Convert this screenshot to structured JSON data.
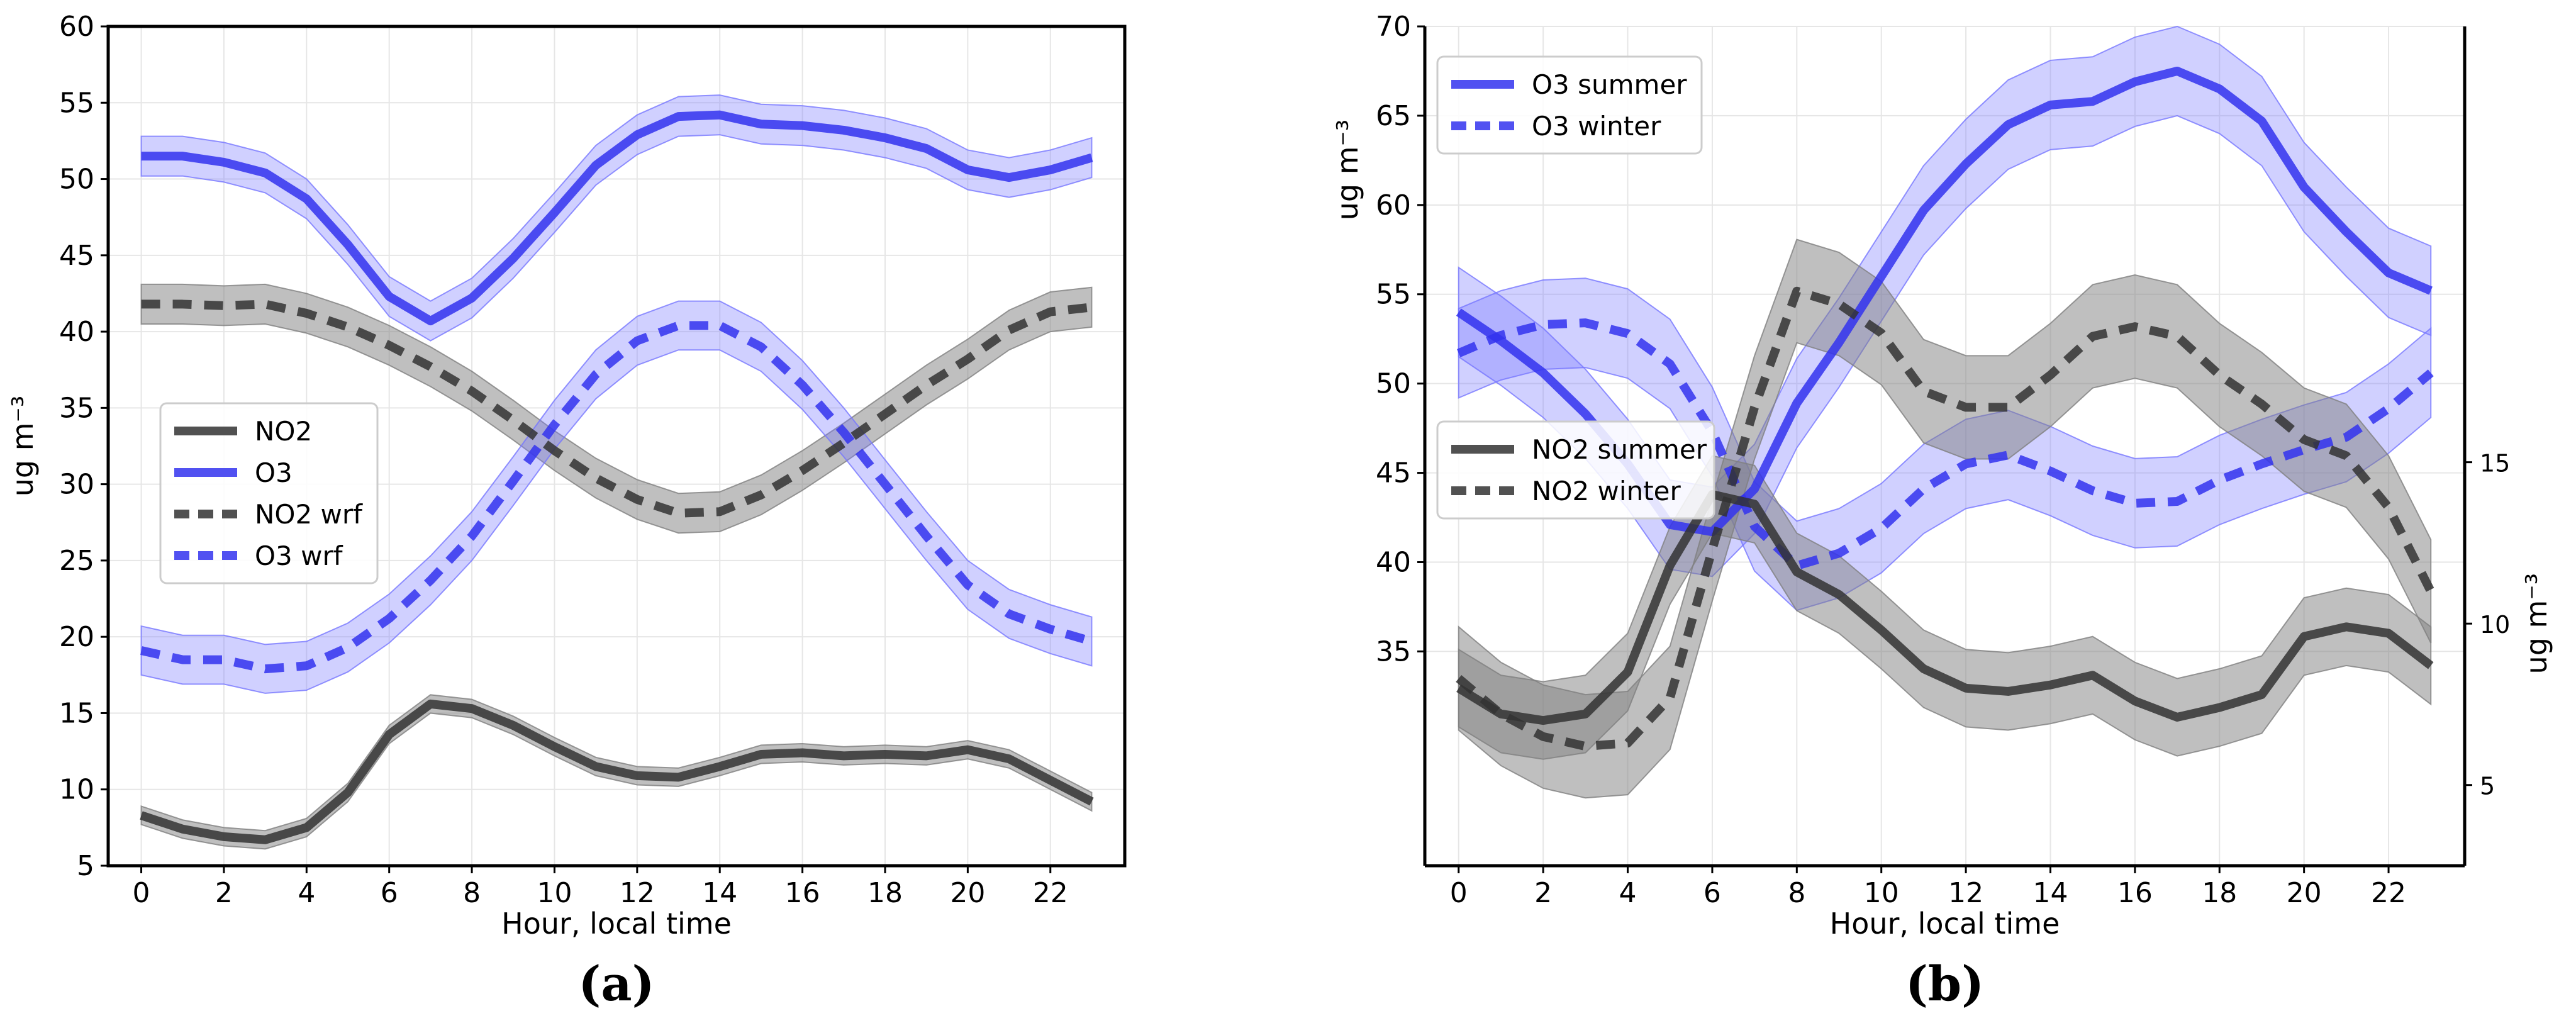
{
  "colors": {
    "no2": "#333333",
    "no2_band": "#808080",
    "o3": "#3333ee",
    "o3_band": "#7777ff",
    "grid": "#e6e6e6",
    "axis": "#000000"
  },
  "chart_data": [
    {
      "type": "line",
      "panel_label": "(a)",
      "xlabel": "Hour, local time",
      "ylabel": "ug m⁻³",
      "xlim": [
        -0.8,
        23.8
      ],
      "ylim": [
        5,
        60
      ],
      "xticks": [
        0,
        2,
        4,
        6,
        8,
        10,
        12,
        14,
        16,
        18,
        20,
        22
      ],
      "yticks": [
        5,
        10,
        15,
        20,
        25,
        30,
        35,
        40,
        45,
        50,
        55,
        60
      ],
      "grid": true,
      "legend_position": "center-left",
      "legend": [
        {
          "label": "NO2",
          "color": "no2",
          "dash": false
        },
        {
          "label": "O3",
          "color": "o3",
          "dash": false
        },
        {
          "label": "NO2 wrf",
          "color": "no2",
          "dash": true
        },
        {
          "label": "O3 wrf",
          "color": "o3",
          "dash": true
        }
      ],
      "series": [
        {
          "name": "NO2",
          "color": "no2",
          "dash": false,
          "band": 0.6,
          "values": [
            8.3,
            7.4,
            6.9,
            6.7,
            7.5,
            9.8,
            13.6,
            15.6,
            15.3,
            14.2,
            12.8,
            11.5,
            10.9,
            10.8,
            11.5,
            12.3,
            12.4,
            12.2,
            12.3,
            12.2,
            12.6,
            12.0,
            10.6,
            9.2
          ]
        },
        {
          "name": "O3",
          "color": "o3",
          "dash": false,
          "band": 1.3,
          "values": [
            51.5,
            51.5,
            51.1,
            50.4,
            48.7,
            45.7,
            42.3,
            40.7,
            42.2,
            44.8,
            47.8,
            50.9,
            52.9,
            54.1,
            54.2,
            53.6,
            53.5,
            53.2,
            52.7,
            52.0,
            50.6,
            50.1,
            50.6,
            51.4
          ]
        },
        {
          "name": "NO2 wrf",
          "color": "no2",
          "dash": true,
          "band": 1.3,
          "values": [
            41.8,
            41.8,
            41.7,
            41.8,
            41.2,
            40.3,
            39.1,
            37.7,
            36.1,
            34.2,
            32.2,
            30.4,
            29.0,
            28.1,
            28.2,
            29.3,
            30.9,
            32.7,
            34.6,
            36.5,
            38.2,
            40.1,
            41.3,
            41.6
          ]
        },
        {
          "name": "O3 wrf",
          "color": "o3",
          "dash": true,
          "band": 1.6,
          "values": [
            19.1,
            18.5,
            18.5,
            17.9,
            18.1,
            19.3,
            21.2,
            23.7,
            26.6,
            30.2,
            33.9,
            37.2,
            39.4,
            40.4,
            40.4,
            39.0,
            36.5,
            33.4,
            30.0,
            26.6,
            23.4,
            21.5,
            20.5,
            19.7
          ]
        }
      ]
    },
    {
      "type": "line",
      "panel_label": "(b)",
      "xlabel": "Hour, local time",
      "ylabel": "ug m⁻³",
      "ylabel_right": "ug m⁻³",
      "xlim": [
        -0.8,
        23.8
      ],
      "ylim": [
        23,
        70
      ],
      "ylim_right": [
        2.5,
        28.5
      ],
      "xticks": [
        0,
        2,
        4,
        6,
        8,
        10,
        12,
        14,
        16,
        18,
        20,
        22
      ],
      "yticks": [
        35,
        40,
        45,
        50,
        55,
        60,
        65,
        70
      ],
      "yticks_right": [
        5,
        10,
        15
      ],
      "grid": true,
      "legends": [
        {
          "position": "top-left",
          "entries": [
            {
              "label": "O3 summer",
              "color": "o3",
              "dash": false
            },
            {
              "label": "O3 winter",
              "color": "o3",
              "dash": true
            }
          ]
        },
        {
          "position": "center-left",
          "entries": [
            {
              "label": "NO2 summer",
              "color": "no2",
              "dash": false
            },
            {
              "label": "NO2 winter",
              "color": "no2",
              "dash": true
            }
          ]
        }
      ],
      "series": [
        {
          "name": "O3 summer",
          "axis": "left",
          "color": "o3",
          "dash": false,
          "band": 2.5,
          "values": [
            54.0,
            52.4,
            50.6,
            48.3,
            45.5,
            42.1,
            41.7,
            44.1,
            48.9,
            52.3,
            56.0,
            59.7,
            62.3,
            64.5,
            65.6,
            65.8,
            66.9,
            67.5,
            66.5,
            64.7,
            61.0,
            58.5,
            56.2,
            55.2
          ]
        },
        {
          "name": "O3 winter",
          "axis": "left",
          "color": "o3",
          "dash": true,
          "band": 2.5,
          "values": [
            51.7,
            52.7,
            53.3,
            53.4,
            52.8,
            51.1,
            47.3,
            42.0,
            39.8,
            40.5,
            41.9,
            44.1,
            45.5,
            46.0,
            45.1,
            44.0,
            43.3,
            43.4,
            44.6,
            45.5,
            46.3,
            47.0,
            48.6,
            50.6
          ]
        },
        {
          "name": "NO2 summer",
          "axis": "right",
          "color": "no2",
          "dash": false,
          "band": 1.2,
          "values": [
            8.0,
            7.2,
            7.0,
            7.2,
            8.5,
            11.8,
            14.0,
            13.7,
            11.6,
            10.9,
            9.8,
            8.6,
            8.0,
            7.9,
            8.1,
            8.4,
            7.6,
            7.1,
            7.4,
            7.8,
            9.6,
            9.9,
            9.7,
            8.7
          ]
        },
        {
          "name": "NO2 winter",
          "axis": "right",
          "color": "no2",
          "dash": true,
          "band": 1.6,
          "values": [
            8.3,
            7.2,
            6.5,
            6.2,
            6.3,
            7.7,
            12.3,
            16.7,
            20.3,
            19.9,
            19.0,
            17.2,
            16.7,
            16.7,
            17.7,
            18.9,
            19.2,
            18.9,
            17.7,
            16.8,
            15.7,
            15.2,
            13.6,
            11.0
          ]
        }
      ]
    }
  ]
}
